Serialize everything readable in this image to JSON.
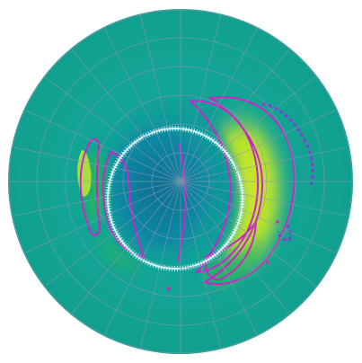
{
  "map": {
    "projection": "polar",
    "text_labels": [],
    "colors": {
      "background": "#ffffff",
      "base": "#12a596",
      "low": "#0a6f93",
      "mid": "#1fb15c",
      "high": "#d6ea2a",
      "contour_magenta": "#cc24c8",
      "contour_purple": "#8a39d0",
      "boundary_ring": "#b9f7ff",
      "grid": "#8e97b1"
    },
    "icons": [
      "polar-grid",
      "contour-lines",
      "boundary-ring"
    ]
  }
}
